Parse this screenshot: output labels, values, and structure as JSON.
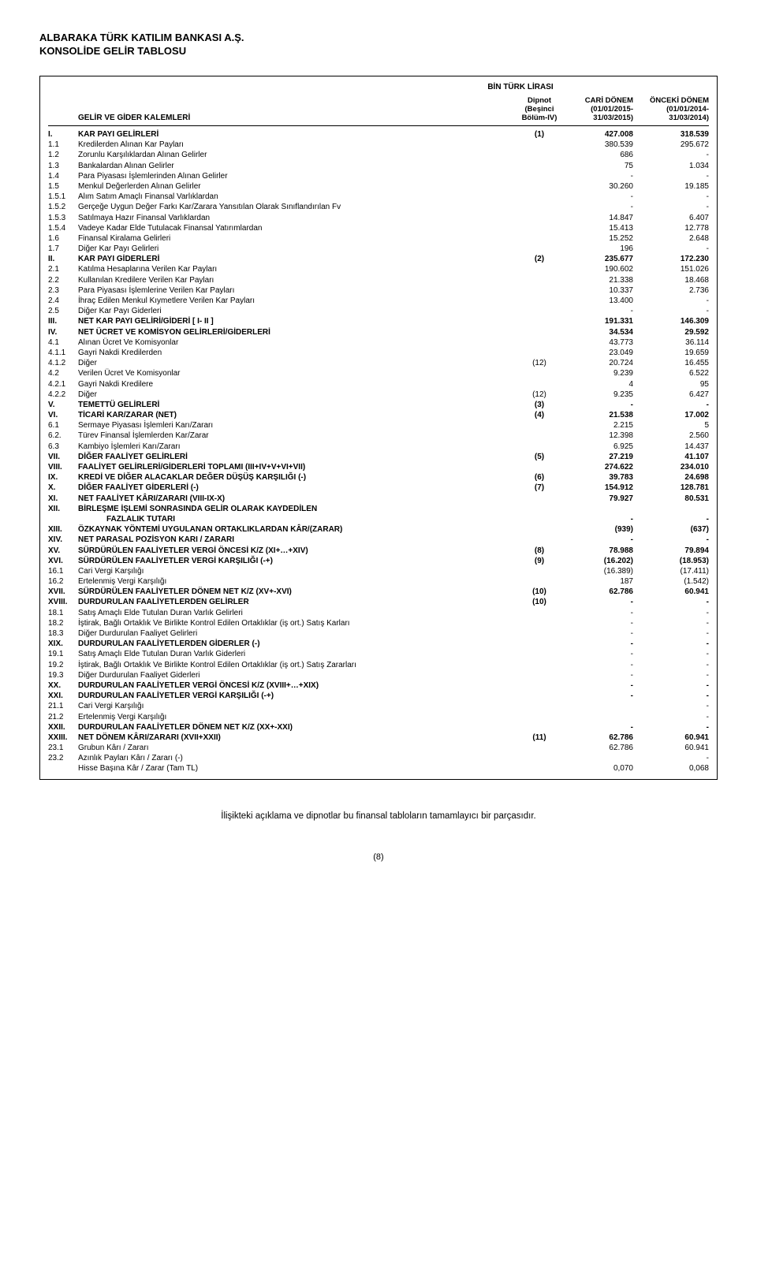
{
  "company": "ALBARAKA TÜRK KATILIM BANKASI A.Ş.",
  "report_title": "KONSOLİDE GELİR TABLOSU",
  "currency_label": "BİN TÜRK LİRASI",
  "columns": {
    "main": "GELİR VE GİDER KALEMLERİ",
    "dip1": "Dipnot",
    "dip2": "(Beşinci",
    "dip3": "Bölüm-IV)",
    "cur1": "CARİ DÖNEM",
    "cur2": "(01/01/2015-",
    "cur3": "31/03/2015)",
    "prev1": "ÖNCEKİ DÖNEM",
    "prev2": "(01/01/2014-",
    "prev3": "31/03/2014)"
  },
  "rows": [
    {
      "code": "I.",
      "desc": "KAR PAYI GELİRLERİ",
      "dip": "(1)",
      "cur": "427.008",
      "prev": "318.539",
      "bold": true
    },
    {
      "code": "1.1",
      "desc": "Kredilerden Alınan Kar Payları",
      "dip": "",
      "cur": "380.539",
      "prev": "295.672"
    },
    {
      "code": "1.2",
      "desc": "Zorunlu Karşılıklardan Alınan Gelirler",
      "dip": "",
      "cur": "686",
      "prev": "-"
    },
    {
      "code": "1.3",
      "desc": "Bankalardan Alınan Gelirler",
      "dip": "",
      "cur": "75",
      "prev": "1.034"
    },
    {
      "code": "1.4",
      "desc": "Para Piyasası İşlemlerinden Alınan Gelirler",
      "dip": "",
      "cur": "-",
      "prev": "-"
    },
    {
      "code": "1.5",
      "desc": "Menkul Değerlerden Alınan Gelirler",
      "dip": "",
      "cur": "30.260",
      "prev": "19.185"
    },
    {
      "code": "1.5.1",
      "desc": "Alım Satım Amaçlı Finansal Varlıklardan",
      "dip": "",
      "cur": "-",
      "prev": "-"
    },
    {
      "code": "1.5.2",
      "desc": "Gerçeğe Uygun Değer Farkı Kar/Zarara Yansıtılan Olarak Sınıflandırılan Fv",
      "dip": "",
      "cur": "-",
      "prev": "-"
    },
    {
      "code": "1.5.3",
      "desc": "Satılmaya Hazır Finansal Varlıklardan",
      "dip": "",
      "cur": "14.847",
      "prev": "6.407"
    },
    {
      "code": "1.5.4",
      "desc": "Vadeye Kadar Elde Tutulacak Finansal Yatırımlardan",
      "dip": "",
      "cur": "15.413",
      "prev": "12.778"
    },
    {
      "code": "1.6",
      "desc": "Finansal Kiralama Gelirleri",
      "dip": "",
      "cur": "15.252",
      "prev": "2.648"
    },
    {
      "code": "1.7",
      "desc": "Diğer Kar Payı Gelirleri",
      "dip": "",
      "cur": "196",
      "prev": "-"
    },
    {
      "code": "II.",
      "desc": "KAR PAYI GİDERLERİ",
      "dip": "(2)",
      "cur": "235.677",
      "prev": "172.230",
      "bold": true
    },
    {
      "code": "2.1",
      "desc": "Katılma Hesaplarına Verilen Kar Payları",
      "dip": "",
      "cur": "190.602",
      "prev": "151.026"
    },
    {
      "code": "2.2",
      "desc": "Kullanılan Kredilere Verilen Kar Payları",
      "dip": "",
      "cur": "21.338",
      "prev": "18.468"
    },
    {
      "code": "2.3",
      "desc": "Para Piyasası İşlemlerine Verilen Kar Payları",
      "dip": "",
      "cur": "10.337",
      "prev": "2.736"
    },
    {
      "code": "2.4",
      "desc": "İhraç Edilen Menkul Kıymetlere Verilen Kar Payları",
      "dip": "",
      "cur": "13.400",
      "prev": "-"
    },
    {
      "code": "2.5",
      "desc": "Diğer Kar Payı Giderleri",
      "dip": "",
      "cur": "-",
      "prev": "-"
    },
    {
      "code": "III.",
      "desc": "NET KAR PAYI GELİRİ/GİDERİ [ I- II ]",
      "dip": "",
      "cur": "191.331",
      "prev": "146.309",
      "bold": true
    },
    {
      "code": "IV.",
      "desc": "NET ÜCRET VE KOMİSYON GELİRLERİ/GİDERLERİ",
      "dip": "",
      "cur": "34.534",
      "prev": "29.592",
      "bold": true
    },
    {
      "code": "4.1",
      "desc": "Alınan Ücret Ve Komisyonlar",
      "dip": "",
      "cur": "43.773",
      "prev": "36.114"
    },
    {
      "code": "4.1.1",
      "desc": "Gayri Nakdi Kredilerden",
      "dip": "",
      "cur": "23.049",
      "prev": "19.659"
    },
    {
      "code": "4.1.2",
      "desc": "Diğer",
      "dip": "(12)",
      "cur": "20.724",
      "prev": "16.455"
    },
    {
      "code": "4.2",
      "desc": "Verilen Ücret Ve Komisyonlar",
      "dip": "",
      "cur": "9.239",
      "prev": "6.522"
    },
    {
      "code": "4.2.1",
      "desc": "Gayri Nakdi Kredilere",
      "dip": "",
      "cur": "4",
      "prev": "95"
    },
    {
      "code": "4.2.2",
      "desc": "Diğer",
      "dip": "(12)",
      "cur": "9.235",
      "prev": "6.427"
    },
    {
      "code": "V.",
      "desc": "TEMETTÜ GELİRLERİ",
      "dip": "(3)",
      "cur": "-",
      "prev": "-",
      "bold": true
    },
    {
      "code": "VI.",
      "desc": "TİCARİ KAR/ZARAR (NET)",
      "dip": "(4)",
      "cur": "21.538",
      "prev": "17.002",
      "bold": true
    },
    {
      "code": "6.1",
      "desc": "Sermaye Piyasası İşlemleri Karı/Zararı",
      "dip": "",
      "cur": "2.215",
      "prev": "5"
    },
    {
      "code": "6.2.",
      "desc": "Türev Finansal İşlemlerden Kar/Zarar",
      "dip": "",
      "cur": "12.398",
      "prev": "2.560"
    },
    {
      "code": "6.3",
      "desc": "Kambiyo İşlemleri Karı/Zararı",
      "dip": "",
      "cur": "6.925",
      "prev": "14.437"
    },
    {
      "code": "VII.",
      "desc": "DİĞER FAALİYET GELİRLERİ",
      "dip": "(5)",
      "cur": "27.219",
      "prev": "41.107",
      "bold": true
    },
    {
      "code": "VIII.",
      "desc": "FAALİYET GELİRLERİ/GİDERLERİ TOPLAMI (III+IV+V+VI+VII)",
      "dip": "",
      "cur": "274.622",
      "prev": "234.010",
      "bold": true
    },
    {
      "code": "IX.",
      "desc": "KREDİ VE DİĞER ALACAKLAR DEĞER DÜŞÜŞ KARŞILIĞI (-)",
      "dip": "(6)",
      "cur": "39.783",
      "prev": "24.698",
      "bold": true
    },
    {
      "code": "X.",
      "desc": "DİĞER FAALİYET GİDERLERİ (-)",
      "dip": "(7)",
      "cur": "154.912",
      "prev": "128.781",
      "bold": true
    },
    {
      "code": "XI.",
      "desc": "NET FAALİYET KÂRI/ZARARI (VIII-IX-X)",
      "dip": "",
      "cur": "79.927",
      "prev": "80.531",
      "bold": true
    },
    {
      "code": "XII.",
      "desc": "BİRLEŞME İŞLEMİ SONRASINDA GELİR OLARAK KAYDEDİLEN",
      "dip": "",
      "cur": "",
      "prev": "",
      "bold": true
    },
    {
      "code": "",
      "desc": "FAZLALIK TUTARI",
      "dip": "",
      "cur": "-",
      "prev": "-",
      "bold": true,
      "indent": true
    },
    {
      "code": "XIII.",
      "desc": "ÖZKAYNAK YÖNTEMİ UYGULANAN ORTAKLIKLARDAN KÂR/(ZARAR)",
      "dip": "",
      "cur": "(939)",
      "prev": "(637)",
      "bold": true
    },
    {
      "code": "XIV.",
      "desc": "NET PARASAL POZİSYON KARI / ZARARI",
      "dip": "",
      "cur": "-",
      "prev": "-",
      "bold": true
    },
    {
      "code": "XV.",
      "desc": "SÜRDÜRÜLEN FAALİYETLER VERGİ ÖNCESİ K/Z (XI+…+XIV)",
      "dip": "(8)",
      "cur": "78.988",
      "prev": "79.894",
      "bold": true
    },
    {
      "code": "XVI.",
      "desc": "SÜRDÜRÜLEN FAALİYETLER VERGİ KARŞILIĞI (-+)",
      "dip": "(9)",
      "cur": "(16.202)",
      "prev": "(18.953)",
      "bold": true
    },
    {
      "code": "16.1",
      "desc": "Cari Vergi Karşılığı",
      "dip": "",
      "cur": "(16.389)",
      "prev": "(17.411)"
    },
    {
      "code": "16.2",
      "desc": "Ertelenmiş Vergi Karşılığı",
      "dip": "",
      "cur": "187",
      "prev": "(1.542)"
    },
    {
      "code": "XVII.",
      "desc": "SÜRDÜRÜLEN FAALİYETLER DÖNEM NET K/Z (XV+-XVI)",
      "dip": "(10)",
      "cur": "62.786",
      "prev": "60.941",
      "bold": true
    },
    {
      "code": "XVIII.",
      "desc": "DURDURULAN FAALİYETLERDEN GELİRLER",
      "dip": "(10)",
      "cur": "-",
      "prev": "-",
      "bold": true
    },
    {
      "code": "18.1",
      "desc": "Satış Amaçlı Elde Tutulan Duran Varlık Gelirleri",
      "dip": "",
      "cur": "-",
      "prev": "-"
    },
    {
      "code": "18.2",
      "desc": "İştirak, Bağlı Ortaklık Ve Birlikte Kontrol Edilen Ortaklıklar (iş ort.) Satış Karları",
      "dip": "",
      "cur": "-",
      "prev": "-"
    },
    {
      "code": "18.3",
      "desc": "Diğer Durdurulan Faaliyet Gelirleri",
      "dip": "",
      "cur": "-",
      "prev": "-"
    },
    {
      "code": "XIX.",
      "desc": "DURDURULAN FAALİYETLERDEN GİDERLER (-)",
      "dip": "",
      "cur": "-",
      "prev": "-",
      "bold": true
    },
    {
      "code": "19.1",
      "desc": "Satış Amaçlı Elde Tutulan Duran Varlık Giderleri",
      "dip": "",
      "cur": "-",
      "prev": "-"
    },
    {
      "code": "19.2",
      "desc": "İştirak, Bağlı Ortaklık Ve Birlikte Kontrol Edilen Ortaklıklar (iş ort.) Satış Zararları",
      "dip": "",
      "cur": "-",
      "prev": "-"
    },
    {
      "code": "19.3",
      "desc": "Diğer Durdurulan Faaliyet Giderleri",
      "dip": "",
      "cur": "-",
      "prev": "-"
    },
    {
      "code": "XX.",
      "desc": "DURDURULAN FAALİYETLER VERGİ ÖNCESİ K/Z (XVIII+…+XIX)",
      "dip": "",
      "cur": "-",
      "prev": "-",
      "bold": true
    },
    {
      "code": "XXI.",
      "desc": "DURDURULAN FAALİYETLER VERGİ KARŞILIĞI (-+)",
      "dip": "",
      "cur": "-",
      "prev": "-",
      "bold": true
    },
    {
      "code": "21.1",
      "desc": "Cari Vergi Karşılığı",
      "dip": "",
      "cur": "",
      "prev": "-"
    },
    {
      "code": "21.2",
      "desc": "Ertelenmiş Vergi Karşılığı",
      "dip": "",
      "cur": "",
      "prev": "-"
    },
    {
      "code": "XXII.",
      "desc": "DURDURULAN FAALİYETLER DÖNEM NET K/Z (XX+-XXI)",
      "dip": "",
      "cur": "-",
      "prev": "-",
      "bold": true
    },
    {
      "code": "XXIII.",
      "desc": "NET DÖNEM KÂRI/ZARARI (XVII+XXII)",
      "dip": "(11)",
      "cur": "62.786",
      "prev": "60.941",
      "bold": true
    },
    {
      "code": "23.1",
      "desc": "Grubun Kârı / Zararı",
      "dip": "",
      "cur": "62.786",
      "prev": "60.941"
    },
    {
      "code": "23.2",
      "desc": "Azınlık Payları Kârı / Zararı (-)",
      "dip": "",
      "cur": "",
      "prev": "-"
    },
    {
      "code": "",
      "desc": "Hisse Başına Kâr / Zarar  (Tam TL)",
      "dip": "",
      "cur": "0,070",
      "prev": "0,068"
    }
  ],
  "footer_note": "İlişikteki açıklama ve dipnotlar bu finansal tabloların tamamlayıcı bir parçasıdır.",
  "page_num": "(8)"
}
